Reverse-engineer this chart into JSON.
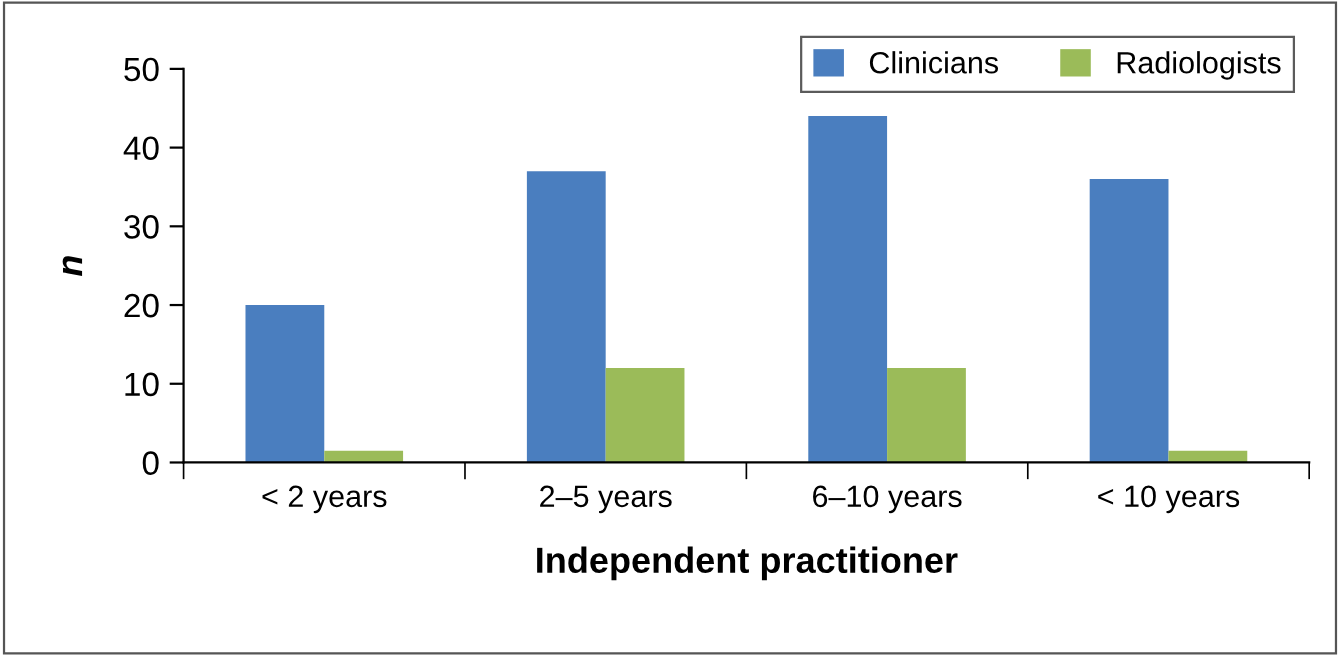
{
  "chart_data": {
    "type": "bar",
    "xlabel": "Independent practitioner",
    "ylabel": "n",
    "categories": [
      "< 2 years",
      "2–5 years",
      "6–10 years",
      "< 10 years"
    ],
    "series": [
      {
        "name": "Clinicians",
        "color": "#4a7ebf",
        "values": [
          20,
          37,
          44,
          36
        ]
      },
      {
        "name": "Radiologists",
        "color": "#9bbb59",
        "values": [
          1.5,
          12,
          12,
          1.5
        ]
      }
    ],
    "ylim": [
      0,
      50
    ],
    "yticks": [
      0,
      10,
      20,
      30,
      40,
      50
    ],
    "grid": false,
    "legend": "top right"
  }
}
